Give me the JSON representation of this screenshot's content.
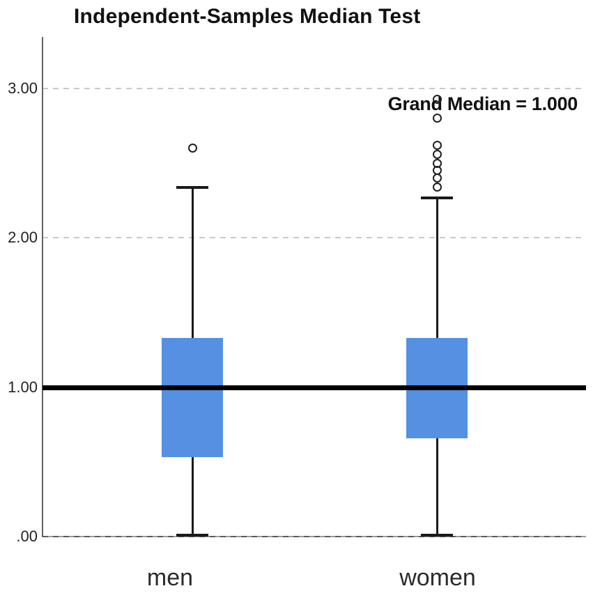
{
  "chart_data": {
    "type": "boxplot",
    "title": "Independent-Samples Median Test",
    "annotation": "Grand Median = 1.000",
    "grand_median": 1.0,
    "categories": [
      "men",
      "women"
    ],
    "ylim": [
      0.0,
      3.35
    ],
    "yticks": [
      {
        "label": "3.00",
        "value": 3.0
      },
      {
        "label": "2.00",
        "value": 2.0
      },
      {
        "label": "1.00",
        "value": 1.0
      },
      {
        "label": ".00",
        "value": 0.0
      }
    ],
    "gridline_values": [
      3.0,
      2.0,
      0.0
    ],
    "grid": "dashed-horizontal",
    "legend": "none",
    "series": [
      {
        "name": "men",
        "whisker_low": 0.0,
        "q1": 0.53,
        "median": 1.0,
        "q3": 1.33,
        "whisker_high": 2.34,
        "outliers": [
          2.6
        ]
      },
      {
        "name": "women",
        "whisker_low": 0.0,
        "q1": 0.66,
        "median": 1.0,
        "q3": 1.33,
        "whisker_high": 2.27,
        "outliers": [
          2.34,
          2.4,
          2.45,
          2.5,
          2.56,
          2.62,
          2.8,
          2.93
        ]
      }
    ],
    "colors": {
      "box_fill": "#5590E2",
      "whisker": "#1a1a1a",
      "grand_median_line": "#000000",
      "gridline": "#c8c8c8",
      "gridline_dark": "#5a5a5a",
      "axis": "#616161",
      "outlier_ring": "#1f1f1f"
    }
  }
}
